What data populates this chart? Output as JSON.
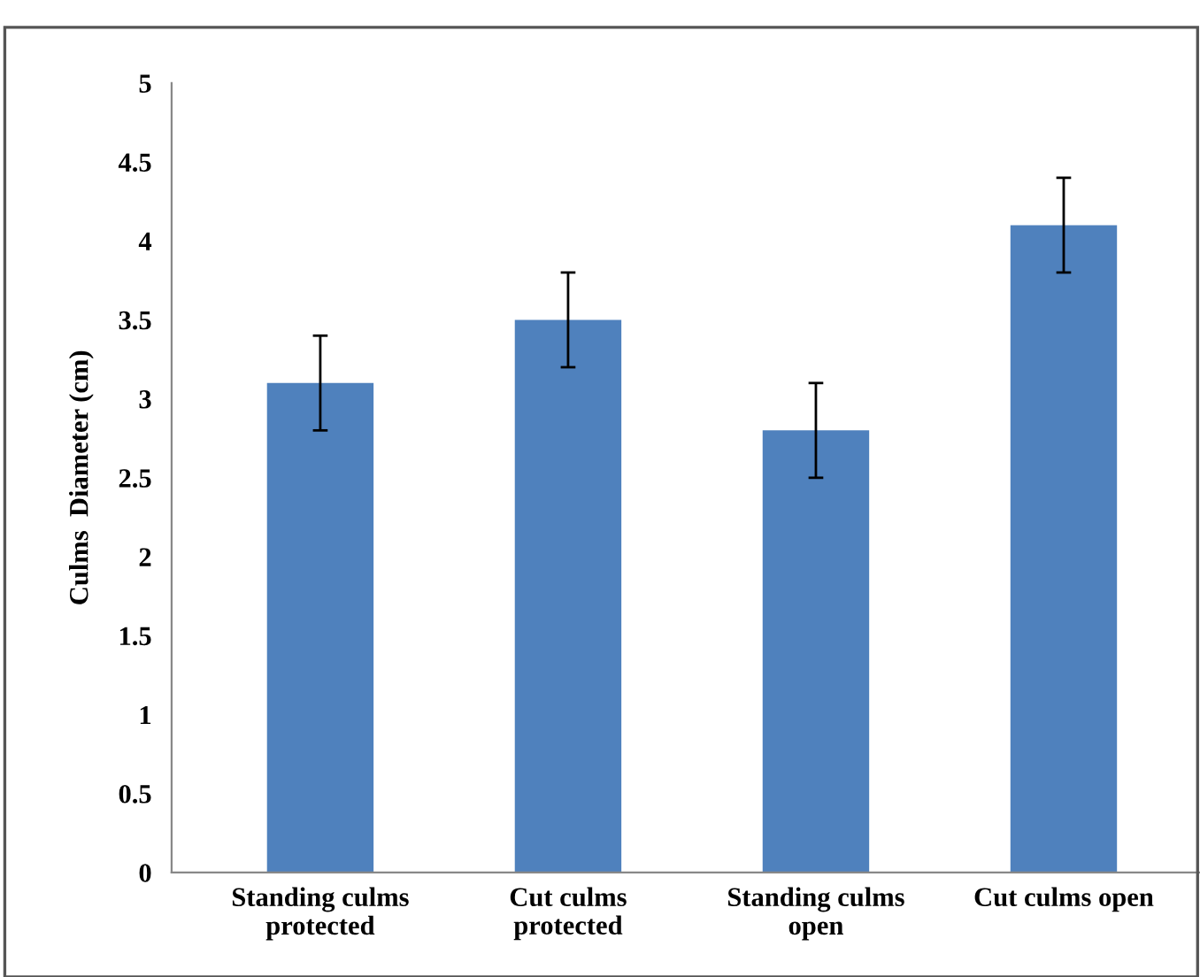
{
  "chart_data": {
    "type": "bar",
    "ylabel": "Culms  Diameter (cm)",
    "categories": [
      "Standing culms\nprotected",
      "Cut culms\nprotected",
      "Standing culms\nopen",
      "Cut culms open"
    ],
    "values": [
      3.1,
      3.5,
      2.8,
      4.1
    ],
    "errors": [
      0.3,
      0.3,
      0.3,
      0.3
    ],
    "color": "#4f81bd",
    "ylim": [
      0,
      5
    ],
    "yticks": [
      0,
      0.5,
      1,
      1.5,
      2,
      2.5,
      3,
      3.5,
      4,
      4.5,
      5
    ],
    "grid": false
  }
}
